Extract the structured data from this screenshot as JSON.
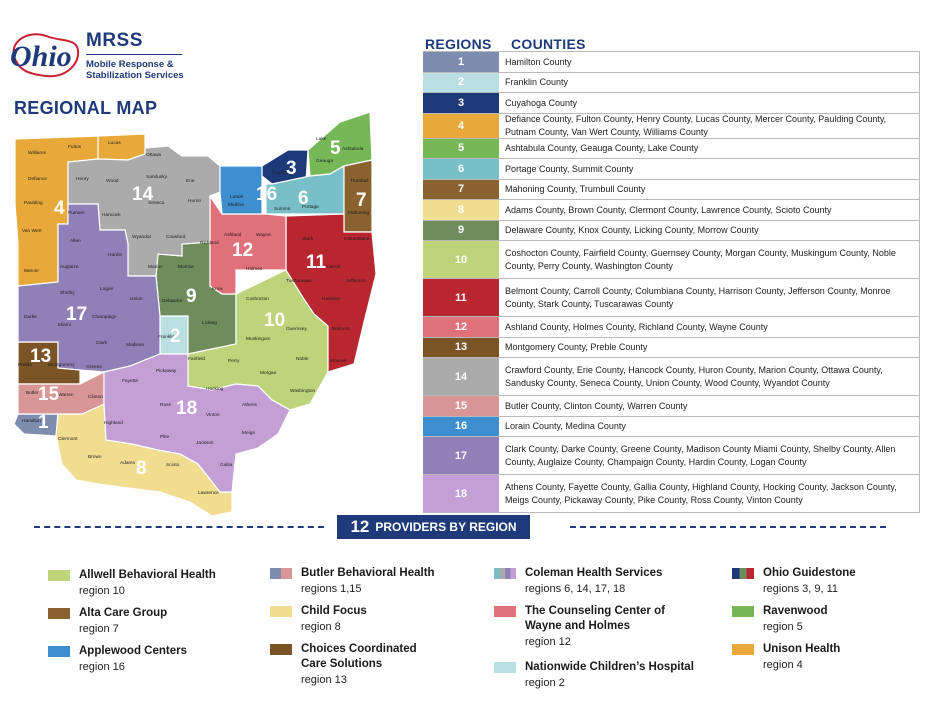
{
  "logo": {
    "wordmark": "Ohio",
    "title": "MRSS",
    "subtitle_line1": "Mobile Response &",
    "subtitle_line2": "Stabilization Services"
  },
  "map": {
    "title": "REGIONAL MAP",
    "county_labels": [
      "Williams",
      "Fulton",
      "Lucas",
      "Ottawa",
      "Defiance",
      "Henry",
      "Wood",
      "Sandusky",
      "Erie",
      "Lorain",
      "Cuyahoga",
      "Lake",
      "Ashtabula",
      "Geauga",
      "Trumbull",
      "Paulding",
      "Putnam",
      "Hancock",
      "Seneca",
      "Huron",
      "Medina",
      "Summit",
      "Portage",
      "Mahoning",
      "Van Wert",
      "Allen",
      "Hardin",
      "Wyandot",
      "Crawford",
      "Richland",
      "Ashland",
      "Wayne",
      "Stark",
      "Columbiana",
      "Mercer",
      "Auglaize",
      "Marion",
      "Morrow",
      "Holmes",
      "Carroll",
      "Jefferson",
      "Shelby",
      "Logan",
      "Union",
      "Delaware",
      "Knox",
      "Tuscarawas",
      "Harrison",
      "Darke",
      "Miami",
      "Champaign",
      "Coshocton",
      "Guernsey",
      "Belmont",
      "Clark",
      "Madison",
      "Franklin",
      "Licking",
      "Muskingum",
      "Noble",
      "Monroe",
      "Preble",
      "Montgomery",
      "Greene",
      "Fairfield",
      "Perry",
      "Morgan",
      "Washington",
      "Butler",
      "Warren",
      "Clinton",
      "Fayette",
      "Pickaway",
      "Hocking",
      "Athens",
      "Hamilton",
      "Highland",
      "Ross",
      "Vinton",
      "Meigs",
      "Clermont",
      "Brown",
      "Adams",
      "Pike",
      "Scioto",
      "Jackson",
      "Gallia",
      "Lawrence"
    ],
    "region_colors": {
      "1": "#7e8cb0",
      "2": "#b9dfe3",
      "3": "#1c3a78",
      "4": "#e8a93a",
      "5": "#77b856",
      "6": "#78bfc8",
      "7": "#8a6230",
      "8": "#f0dd90",
      "9": "#6e8c5c",
      "10": "#bdd47a",
      "11": "#b8262f",
      "12": "#e07079",
      "13": "#7a5426",
      "14": "#ababab",
      "15": "#d99696",
      "16": "#3d8fd0",
      "17": "#9080b8",
      "18": "#c39fd6"
    },
    "region_labels": [
      "1",
      "2",
      "3",
      "4",
      "5",
      "6",
      "7",
      "8",
      "9",
      "10",
      "11",
      "12",
      "13",
      "14",
      "15",
      "16",
      "17",
      "18"
    ]
  },
  "table": {
    "header_regions": "REGIONS",
    "header_counties": "COUNTIES",
    "rows": [
      {
        "region": "1",
        "color": "#7e8cb0",
        "counties": "Hamilton County"
      },
      {
        "region": "2",
        "color": "#b9dfe3",
        "counties": "Franklin County"
      },
      {
        "region": "3",
        "color": "#1c3a78",
        "counties": "Cuyahoga County"
      },
      {
        "region": "4",
        "color": "#e8a93a",
        "counties": "Defiance County, Fulton County, Henry County, Lucas County, Mercer County, Paulding County, Putnam County, Van Wert County, Williams County"
      },
      {
        "region": "5",
        "color": "#77b856",
        "counties": "Ashtabula County, Geauga County, Lake County"
      },
      {
        "region": "6",
        "color": "#78bfc8",
        "counties": "Portage County, Summit County"
      },
      {
        "region": "7",
        "color": "#8a6230",
        "counties": "Mahoning County, Trumbull County"
      },
      {
        "region": "8",
        "color": "#f0dd90",
        "counties": "Adams County, Brown County, Clermont County, Lawrence County, Scioto County"
      },
      {
        "region": "9",
        "color": "#6e8c5c",
        "counties": "Delaware County, Knox County, Licking County, Morrow County"
      },
      {
        "region": "10",
        "color": "#bdd47a",
        "counties": "Coshocton County, Fairfield County, Guernsey County, Morgan County, Muskingum County, Noble County, Perry County, Washington County"
      },
      {
        "region": "11",
        "color": "#b8262f",
        "counties": "Belmont County, Carroll County, Columbiana County, Harrison County, Jefferson County, Monroe County, Stark County, Tuscarawas County"
      },
      {
        "region": "12",
        "color": "#e07079",
        "counties": "Ashland County, Holmes County, Richland County, Wayne County"
      },
      {
        "region": "13",
        "color": "#7a5426",
        "counties": "Montgomery County, Preble County"
      },
      {
        "region": "14",
        "color": "#ababab",
        "counties": "Crawford County, Erie County, Hancock County, Huron County, Marion County, Ottawa County, Sandusky County, Seneca County, Union County, Wood County, Wyandot County"
      },
      {
        "region": "15",
        "color": "#d99696",
        "counties": "Butler County, Clinton County, Warren County"
      },
      {
        "region": "16",
        "color": "#3d8fd0",
        "counties": "Lorain County, Medina County"
      },
      {
        "region": "17",
        "color": "#9080b8",
        "counties": "Clark County, Darke County, Greene County, Madison County Miami County, Shelby County, Allen County, Auglaize County, Champaign County, Hardin County, Logan County"
      },
      {
        "region": "18",
        "color": "#c39fd6",
        "counties": "Athens County, Fayette County, Gallia County, Highland County, Hocking County, Jackson County, Meigs County, Pickaway County, Pike County, Ross County, Vinton County"
      }
    ]
  },
  "providers": {
    "count": "12",
    "title": "PROVIDERS BY REGION",
    "items": [
      {
        "name": "Allwell Behavioral Health",
        "region": "region 10",
        "colors": [
          "#bdd47a"
        ]
      },
      {
        "name": "Alta Care Group",
        "region": "region 7",
        "colors": [
          "#8a6230"
        ]
      },
      {
        "name": "Applewood Centers",
        "region": "region 16",
        "colors": [
          "#3d8fd0"
        ]
      },
      {
        "name": "Butler Behavioral Health",
        "region": "regions 1,15",
        "colors": [
          "#7e8cb0",
          "#d99696"
        ]
      },
      {
        "name": "Child Focus",
        "region": "region 8",
        "colors": [
          "#f0dd90"
        ]
      },
      {
        "name": "Choices Coordinated Care Solutions",
        "region": "region 13",
        "colors": [
          "#7a5426"
        ]
      },
      {
        "name": "Coleman Health Services",
        "region": "regions 6, 14, 17, 18",
        "colors": [
          "#78bfc8",
          "#ababab",
          "#9080b8",
          "#c39fd6"
        ]
      },
      {
        "name": "The Counseling Center of Wayne and Holmes",
        "region": "region 12",
        "colors": [
          "#e07079"
        ]
      },
      {
        "name": "Nationwide Children’s Hospital",
        "region": "region 2",
        "colors": [
          "#b9dfe3"
        ]
      },
      {
        "name": "Ohio Guidestone",
        "region": "regions 3, 9, 11",
        "colors": [
          "#1c3a78",
          "#6e8c5c",
          "#b8262f"
        ]
      },
      {
        "name": "Ravenwood",
        "region": "region 5",
        "colors": [
          "#77b856"
        ]
      },
      {
        "name": "Unison Health",
        "region": "region 4",
        "colors": [
          "#e8a93a"
        ]
      }
    ]
  }
}
